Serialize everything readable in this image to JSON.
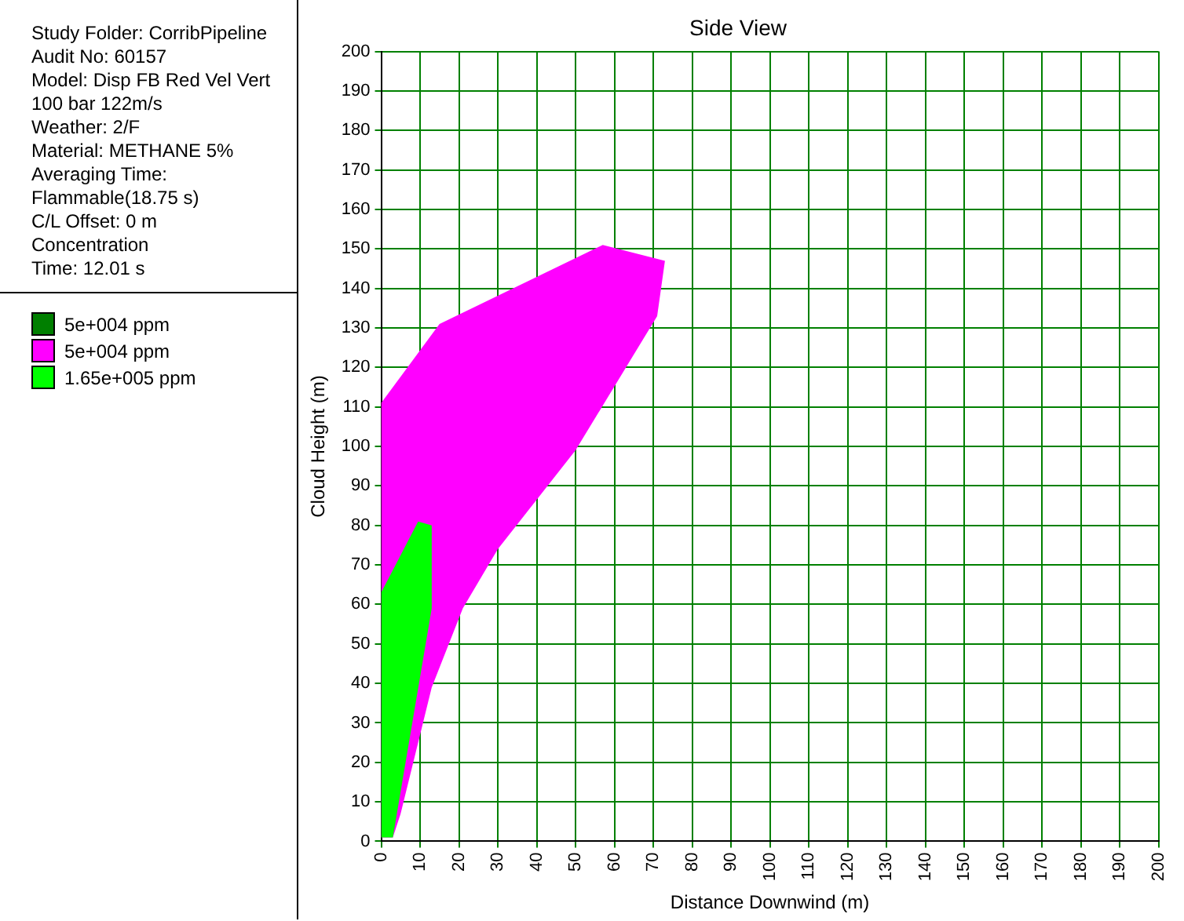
{
  "chart_data": {
    "type": "area",
    "title": "Side View",
    "xlabel": "Distance Downwind (m)",
    "ylabel": "Cloud Height (m)",
    "annotations": [
      "Study Folder: CorribPipeline",
      "Audit No: 60157",
      "Model: Disp FB Red Vel Vert",
      "100 bar 122m/s",
      "Weather: 2/F",
      "Material: METHANE 5%",
      "Averaging Time:",
      "Flammable(18.75 s)",
      "C/L Offset: 0 m",
      "Concentration",
      "Time: 12.01 s"
    ],
    "xlim": [
      0,
      200
    ],
    "xticks": [
      0,
      10,
      20,
      30,
      40,
      50,
      60,
      70,
      80,
      90,
      100,
      110,
      120,
      130,
      140,
      150,
      160,
      170,
      180,
      190,
      200
    ],
    "ylim": [
      0,
      200
    ],
    "yticks": [
      0,
      10,
      20,
      30,
      40,
      50,
      60,
      70,
      80,
      90,
      100,
      110,
      120,
      130,
      140,
      150,
      160,
      170,
      180,
      190,
      200
    ],
    "grid": true,
    "legend": "left",
    "marker": "none",
    "series": [
      {
        "name": "5e+004 ppm",
        "color": "#007f00"
      },
      {
        "name": "5e+004 ppm",
        "color": "#ff00ff",
        "x": [
          0,
          15,
          57,
          73,
          71,
          50,
          30,
          21,
          13,
          5,
          3,
          0
        ],
        "values": [
          111,
          131,
          151,
          147,
          133,
          99,
          74,
          59,
          39,
          7,
          1,
          1
        ]
      },
      {
        "name": "1.65e+005 ppm",
        "color": "#00ff00",
        "x": [
          0,
          0,
          9.5,
          13,
          13,
          3
        ],
        "values": [
          1,
          63,
          81,
          80,
          59,
          1
        ]
      }
    ]
  }
}
